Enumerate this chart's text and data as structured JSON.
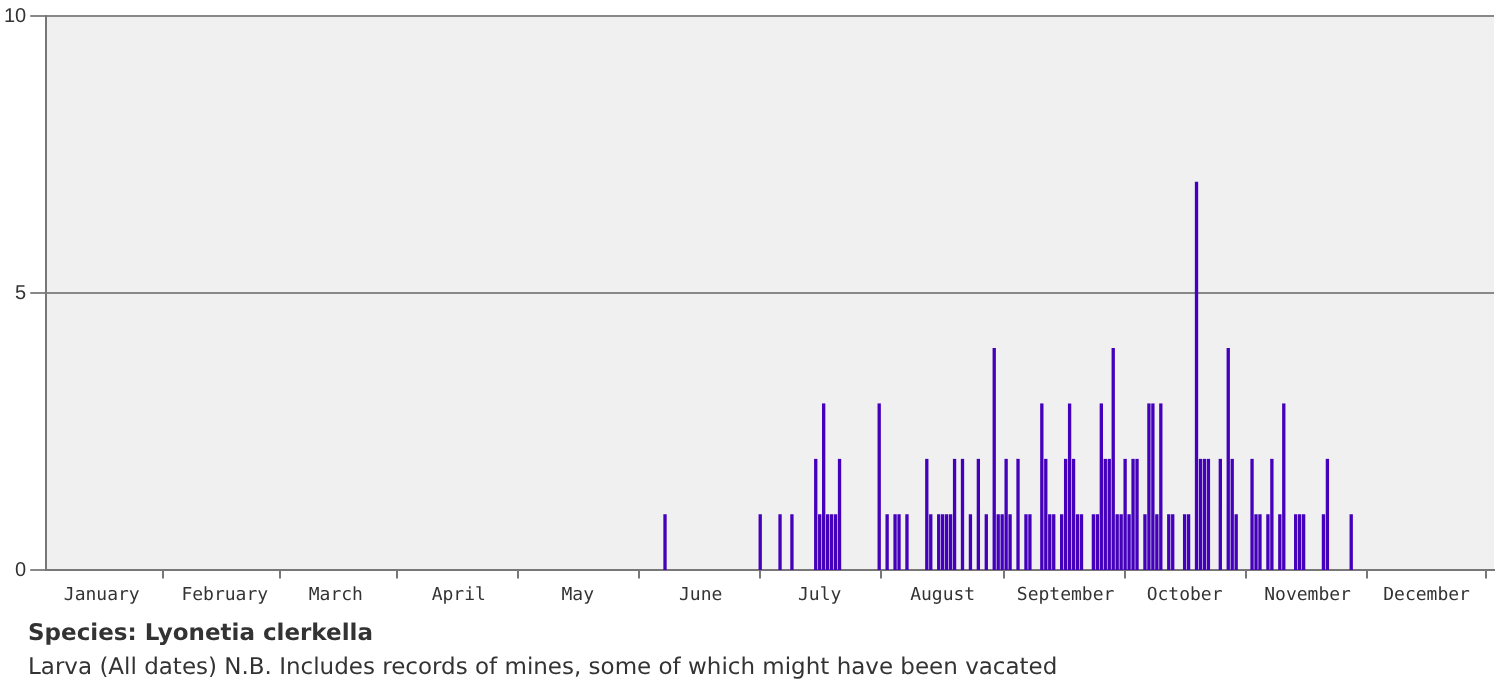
{
  "chart_data": {
    "type": "bar",
    "x": [
      "--06-06",
      "--06-30",
      "--07-05",
      "--07-08",
      "--07-14",
      "--07-15",
      "--07-16",
      "--07-17",
      "--07-18",
      "--07-19",
      "--07-20",
      "--07-30",
      "--08-01",
      "--08-03",
      "--08-04",
      "--08-06",
      "--08-11",
      "--08-12",
      "--08-14",
      "--08-15",
      "--08-16",
      "--08-17",
      "--08-18",
      "--08-20",
      "--08-22",
      "--08-24",
      "--08-26",
      "--08-28",
      "--08-29",
      "--08-30",
      "--08-31",
      "--09-01",
      "--09-03",
      "--09-05",
      "--09-06",
      "--09-09",
      "--09-10",
      "--09-11",
      "--09-12",
      "--09-14",
      "--09-15",
      "--09-16",
      "--09-17",
      "--09-18",
      "--09-19",
      "--09-22",
      "--09-23",
      "--09-24",
      "--09-25",
      "--09-26",
      "--09-27",
      "--09-28",
      "--09-29",
      "--09-30",
      "--10-01",
      "--10-02",
      "--10-03",
      "--10-05",
      "--10-06",
      "--10-07",
      "--10-08",
      "--10-09",
      "--10-11",
      "--10-12",
      "--10-15",
      "--10-16",
      "--10-18",
      "--10-19",
      "--10-20",
      "--10-21",
      "--10-24",
      "--10-26",
      "--10-27",
      "--10-28",
      "--11-01",
      "--11-02",
      "--11-03",
      "--11-05",
      "--11-06",
      "--11-08",
      "--11-09",
      "--11-12",
      "--11-13",
      "--11-14",
      "--11-19",
      "--11-20",
      "--11-26"
    ],
    "values": [
      1,
      1,
      1,
      1,
      2,
      1,
      3,
      1,
      1,
      1,
      2,
      3,
      1,
      1,
      1,
      1,
      2,
      1,
      1,
      1,
      1,
      1,
      2,
      2,
      1,
      2,
      1,
      4,
      1,
      1,
      2,
      1,
      2,
      1,
      1,
      3,
      2,
      1,
      1,
      1,
      2,
      3,
      2,
      1,
      1,
      1,
      1,
      3,
      2,
      2,
      4,
      1,
      1,
      2,
      1,
      2,
      2,
      1,
      3,
      3,
      1,
      3,
      1,
      1,
      1,
      1,
      7,
      2,
      2,
      2,
      2,
      4,
      2,
      1,
      2,
      1,
      1,
      1,
      2,
      1,
      3,
      1,
      1,
      1,
      1,
      2,
      1
    ],
    "color": "#4400bb",
    "xlim": [
      "--01-01",
      "--12-31"
    ],
    "xticks": [
      {
        "value": "--01-15",
        "label": "January"
      },
      {
        "value": "--02-15",
        "label": "February"
      },
      {
        "value": "--03-15",
        "label": "March"
      },
      {
        "value": "--04-15",
        "label": "April"
      },
      {
        "value": "--05-15",
        "label": "May"
      },
      {
        "value": "--06-15",
        "label": "June"
      },
      {
        "value": "--07-15",
        "label": "July"
      },
      {
        "value": "--08-15",
        "label": "August"
      },
      {
        "value": "--09-15",
        "label": "September"
      },
      {
        "value": "--10-15",
        "label": "October"
      },
      {
        "value": "--11-15",
        "label": "November"
      },
      {
        "value": "--12-15",
        "label": "December"
      }
    ],
    "ylim": [
      0,
      10
    ],
    "yticks": [
      0,
      5,
      10
    ],
    "grid": "y",
    "legend": false,
    "annotations": [
      "Species:  Lyonetia clerkella",
      "Larva (All dates)  N.B. Includes records of mines, some of which might have been vacated"
    ]
  }
}
